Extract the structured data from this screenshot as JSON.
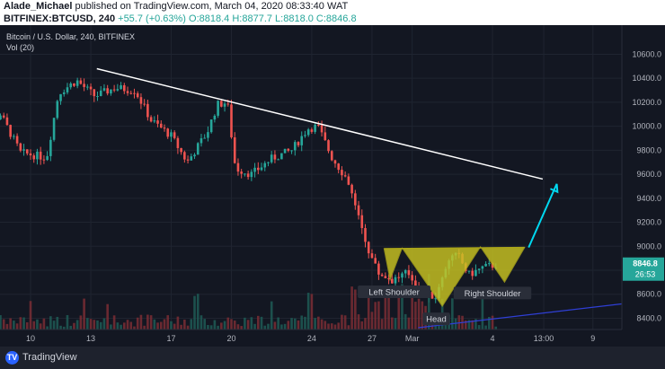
{
  "header": {
    "author": "Alade_Michael",
    "published_text": "published on TradingView.com, March 04, 2020 08:33:40 WAT",
    "symbol": "BITFINEX:BTCUSD, 240",
    "change": "+55.7 (+0.63%)",
    "ohlc": "O:8818.4  H:8877.7  L:8818.0  C:8846.8"
  },
  "legend": {
    "title": "Bitcoin / U.S. Dollar, 240, BITFINEX",
    "vol": "Vol (20)"
  },
  "footer": {
    "brand": "TradingView",
    "logo": "tradingview-logo-icon"
  },
  "colors": {
    "up": "#26a69a",
    "down": "#ef5350",
    "pattern": "#c9c421",
    "trend": "#ffffff",
    "arrow": "#00d8f0"
  },
  "chart_data": {
    "type": "candlestick",
    "ylim": [
      8200,
      10750
    ],
    "y_ticks": [
      8400,
      8600,
      8800,
      9000,
      9200,
      9400,
      9600,
      9800,
      10000,
      10200,
      10400,
      10600
    ],
    "x_ticks": [
      {
        "label": "10",
        "day": 10
      },
      {
        "label": "13",
        "day": 13
      },
      {
        "label": "17",
        "day": 17
      },
      {
        "label": "20",
        "day": 20
      },
      {
        "label": "24",
        "day": 24
      },
      {
        "label": "27",
        "day": 27
      },
      {
        "label": "Mar",
        "day": 29
      },
      {
        "label": "4",
        "day": 33
      },
      {
        "label": "13:00",
        "day": 35.55
      },
      {
        "label": "9",
        "day": 38
      }
    ],
    "price_path": [
      [
        7.0,
        9880
      ],
      [
        8.5,
        10100
      ],
      [
        9.5,
        9780
      ],
      [
        10.8,
        9740
      ],
      [
        11.4,
        10280
      ],
      [
        12.3,
        10380
      ],
      [
        13.2,
        10250
      ],
      [
        14.2,
        10320
      ],
      [
        15.2,
        10300
      ],
      [
        16.0,
        10050
      ],
      [
        17.0,
        9920
      ],
      [
        17.8,
        9700
      ],
      [
        18.8,
        9950
      ],
      [
        19.3,
        10180
      ],
      [
        19.8,
        10200
      ],
      [
        20.2,
        9650
      ],
      [
        21.0,
        9600
      ],
      [
        22.0,
        9730
      ],
      [
        23.0,
        9800
      ],
      [
        23.8,
        9980
      ],
      [
        24.3,
        10000
      ],
      [
        25.0,
        9740
      ],
      [
        25.8,
        9550
      ],
      [
        26.3,
        9250
      ],
      [
        26.8,
        8980
      ],
      [
        27.3,
        8780
      ],
      [
        28.0,
        8720
      ],
      [
        28.8,
        8780
      ],
      [
        29.5,
        8600
      ],
      [
        30.2,
        8580
      ],
      [
        30.8,
        8900
      ],
      [
        31.3,
        8920
      ],
      [
        31.8,
        8760
      ],
      [
        32.5,
        8820
      ],
      [
        33.2,
        8846.8
      ]
    ],
    "last_price": "8846.8",
    "countdown": "26:53",
    "trendline": {
      "from": {
        "day": 13.3,
        "price": 10480
      },
      "to": {
        "day": 35.5,
        "price": 9560
      }
    },
    "annotations": [
      {
        "text": "Left Shoulder",
        "day": 28.1,
        "price": 8620
      },
      {
        "text": "Head",
        "day": 30.2,
        "price": 8395
      },
      {
        "text": "Right Shoulder",
        "day": 33.0,
        "price": 8610
      }
    ],
    "pattern": {
      "neckline": [
        {
          "day": 27.6,
          "price": 8980
        },
        {
          "day": 34.6,
          "price": 8990
        }
      ],
      "left_shoulder_low": {
        "day": 27.9,
        "price": 8720
      },
      "head_low": {
        "day": 30.5,
        "price": 8500
      },
      "right_shoulder_low": {
        "day": 33.6,
        "price": 8700
      }
    },
    "projection_arrow": {
      "from": {
        "day": 34.8,
        "price": 8990
      },
      "to": {
        "day": 36.2,
        "price": 9520
      }
    },
    "volume_trend": {
      "from": {
        "day": 29.3
      },
      "to": {
        "day": 40.0
      }
    }
  }
}
